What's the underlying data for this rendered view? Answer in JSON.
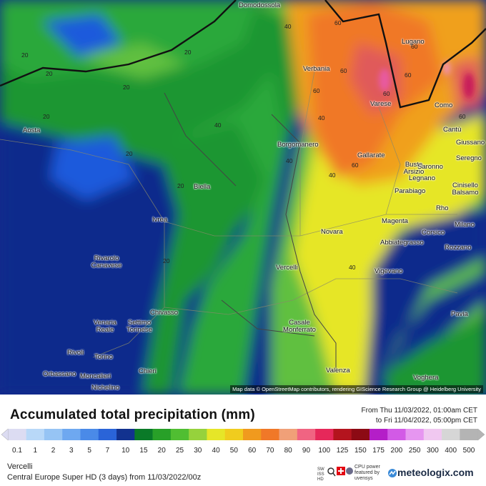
{
  "map": {
    "places": [
      "Domodossola",
      "Lugano",
      "Verbania",
      "Varese",
      "Como",
      "Cantù",
      "Giussano",
      "Seregno",
      "Borgomanero",
      "Gallarate",
      "Busto Arsizio",
      "Saronno",
      "Legnano",
      "Cinisello Balsamo",
      "Parabiago",
      "Rho",
      "Aosta",
      "Biella",
      "Ivrea",
      "Novara",
      "Magenta",
      "Corsico",
      "Milano",
      "Abbiategrasso",
      "Rozzano",
      "Rivarolo Canavese",
      "Vercelli",
      "Vigevano",
      "Pavia",
      "Chivasso",
      "Settimo Torinese",
      "Venaria Reale",
      "Casale Monferrato",
      "Rivoli",
      "Torino",
      "Orbassano",
      "Chieri",
      "Moncalieri",
      "Nichelino",
      "Valenza",
      "Voghera"
    ],
    "contour_labels": [
      "40",
      "60",
      "20",
      "20",
      "20",
      "20",
      "20",
      "60",
      "60",
      "60",
      "40",
      "60",
      "60",
      "40",
      "60",
      "40",
      "20",
      "40",
      "20",
      "40",
      "20",
      "60"
    ],
    "attribution": "Map data © OpenStreetMap contributors, rendering GIScience Research Group @ Heidelberg University"
  },
  "legend": {
    "title": "Accumulated total precipitation (mm)",
    "period": [
      "From Thu 11/03/2022, 01:00am CET",
      "to Fri 11/04/2022, 05:00pm CET"
    ],
    "labels": [
      "0.1",
      "1",
      "2",
      "3",
      "5",
      "7",
      "10",
      "15",
      "20",
      "25",
      "30",
      "40",
      "50",
      "60",
      "70",
      "80",
      "90",
      "100",
      "125",
      "150",
      "175",
      "200",
      "250",
      "300",
      "400",
      "500"
    ],
    "colors": [
      "#dcdcf2",
      "#b8d8f8",
      "#96c4f4",
      "#6ea8f0",
      "#4a8ae8",
      "#2a64d8",
      "#12328f",
      "#0a7a28",
      "#28a028",
      "#50be32",
      "#96d23c",
      "#e6e628",
      "#f0cc1e",
      "#f09a1e",
      "#f07828",
      "#f0a078",
      "#f06482",
      "#e6285a",
      "#b4141e",
      "#8c0a14",
      "#b41ec8",
      "#d25ae6",
      "#e696f0",
      "#f0c8f0",
      "#d6d6d6",
      "#b4b4b4"
    ]
  },
  "footer": {
    "location": "Vercelli",
    "model": "Central Europe Super HD (3 days) from 11/03/2022/00z",
    "badge": "SWISS HD",
    "sponsor": "CPU power featured by uvensys",
    "brand": "meteologix.com"
  }
}
